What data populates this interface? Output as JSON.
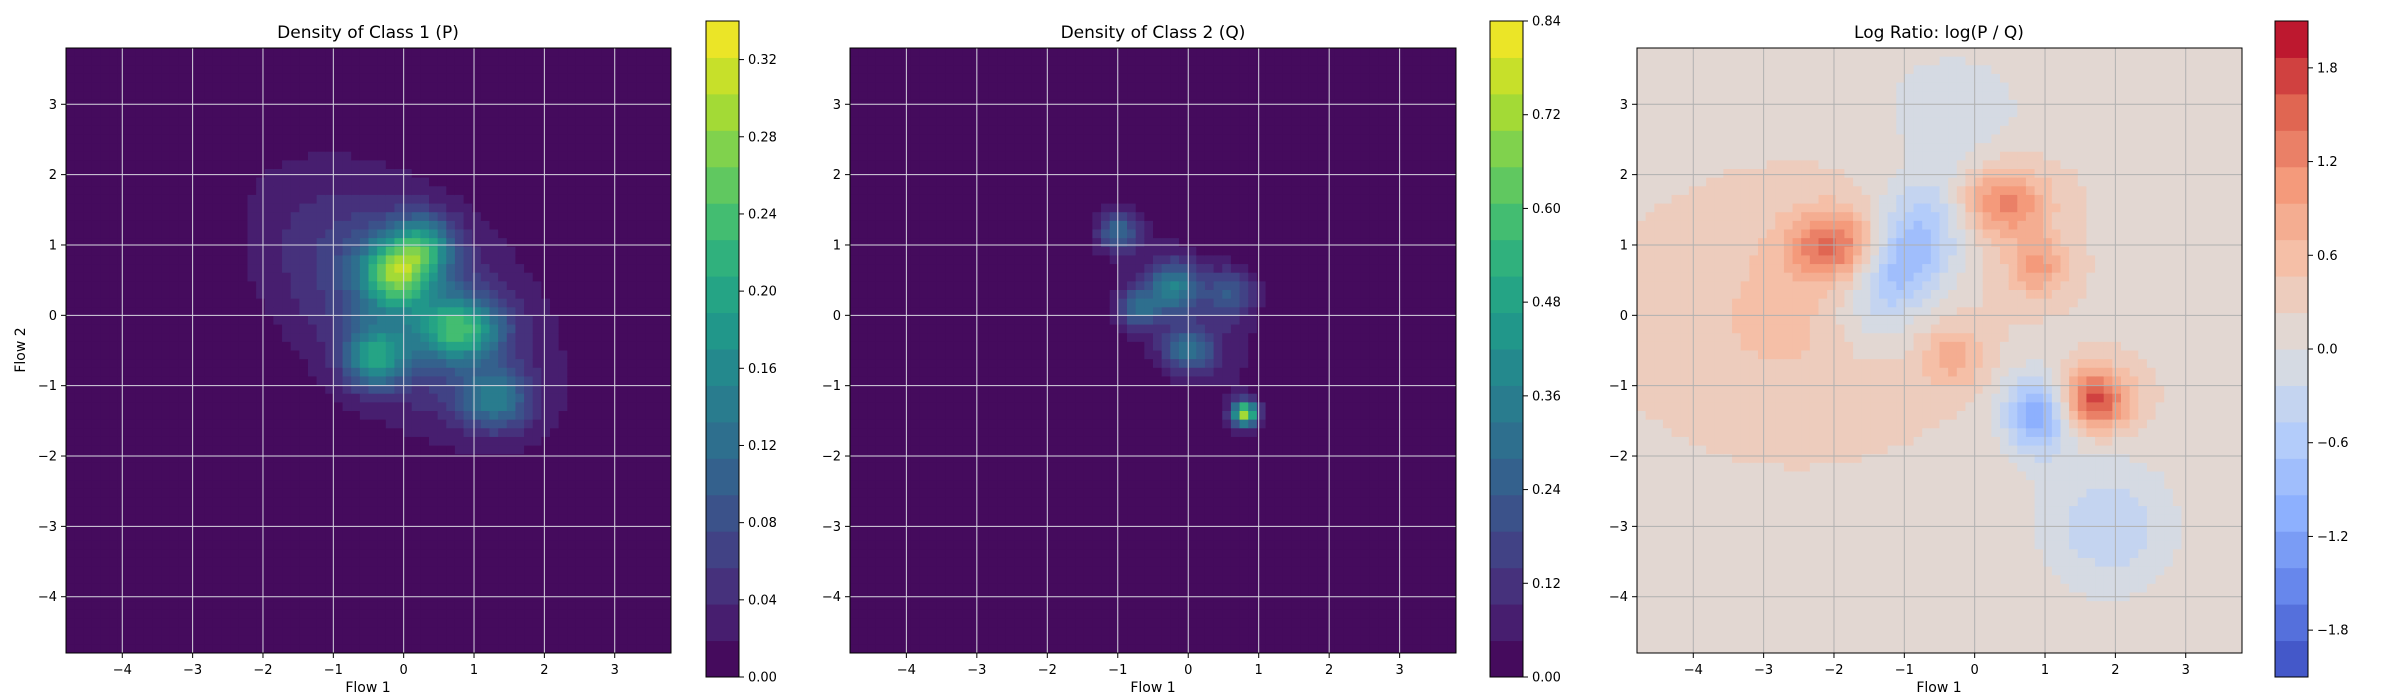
{
  "chart_data": [
    {
      "type": "heatmap",
      "title": "Density of Class 1 (P)",
      "xlabel": "Flow 1",
      "ylabel": "Flow 2",
      "xlim": [
        -4.8,
        3.8
      ],
      "ylim": [
        -4.8,
        3.8
      ],
      "xticks": [
        -4,
        -3,
        -2,
        -1,
        0,
        1,
        2,
        3
      ],
      "yticks": [
        -4,
        -3,
        -2,
        -1,
        0,
        1,
        2,
        3
      ],
      "xtick_labels": [
        "−4",
        "−3",
        "−2",
        "−1",
        "0",
        "1",
        "2",
        "3"
      ],
      "ytick_labels": [
        "−4",
        "−3",
        "−2",
        "−1",
        "0",
        "1",
        "2",
        "3"
      ],
      "grid": true,
      "colormap": "viridis",
      "colorbar_range": [
        0.0,
        0.34
      ],
      "colorbar_ticks": [
        0.0,
        0.04,
        0.08,
        0.12,
        0.16,
        0.2,
        0.24,
        0.28,
        0.32
      ],
      "colorbar_tick_labels": [
        "0.00",
        "0.04",
        "0.08",
        "0.12",
        "0.16",
        "0.20",
        "0.24",
        "0.28",
        "0.32"
      ],
      "density_blobs": [
        {
          "x": 0.0,
          "y": 0.2,
          "sx": 1.5,
          "sy": 0.9,
          "rot": -40,
          "peak": 0.09
        },
        {
          "x": -0.1,
          "y": 0.6,
          "sx": 0.35,
          "sy": 0.35,
          "rot": 0,
          "peak": 0.2
        },
        {
          "x": 0.8,
          "y": -0.2,
          "sx": 0.4,
          "sy": 0.3,
          "rot": 0,
          "peak": 0.17
        },
        {
          "x": -0.4,
          "y": -0.6,
          "sx": 0.3,
          "sy": 0.3,
          "rot": 0,
          "peak": 0.15
        },
        {
          "x": 1.3,
          "y": -1.2,
          "sx": 0.35,
          "sy": 0.3,
          "rot": 0,
          "peak": 0.11
        },
        {
          "x": 0.3,
          "y": 1.0,
          "sx": 0.3,
          "sy": 0.3,
          "rot": 0,
          "peak": 0.12
        }
      ]
    },
    {
      "type": "heatmap",
      "title": "Density of Class 2 (Q)",
      "xlabel": "Flow 1",
      "ylabel": "",
      "xlim": [
        -4.8,
        3.8
      ],
      "ylim": [
        -4.8,
        3.8
      ],
      "xticks": [
        -4,
        -3,
        -2,
        -1,
        0,
        1,
        2,
        3
      ],
      "yticks": [
        -4,
        -3,
        -2,
        -1,
        0,
        1,
        2,
        3
      ],
      "xtick_labels": [
        "−4",
        "−3",
        "−2",
        "−1",
        "0",
        "1",
        "2",
        "3"
      ],
      "ytick_labels": [
        "−4",
        "−3",
        "−2",
        "−1",
        "0",
        "1",
        "2",
        "3"
      ],
      "grid": true,
      "colormap": "viridis",
      "colorbar_range": [
        0.0,
        0.84
      ],
      "colorbar_ticks": [
        0.0,
        0.12,
        0.24,
        0.36,
        0.48,
        0.6,
        0.72,
        0.84
      ],
      "colorbar_tick_labels": [
        "0.00",
        "0.12",
        "0.24",
        "0.36",
        "0.48",
        "0.60",
        "0.72",
        "0.84"
      ],
      "density_blobs": [
        {
          "x": 0.0,
          "y": 0.0,
          "sx": 1.1,
          "sy": 0.55,
          "rot": -55,
          "peak": 0.08
        },
        {
          "x": -1.0,
          "y": 1.2,
          "sx": 0.2,
          "sy": 0.2,
          "rot": 0,
          "peak": 0.25
        },
        {
          "x": -0.2,
          "y": 0.4,
          "sx": 0.25,
          "sy": 0.25,
          "rot": 0,
          "peak": 0.3
        },
        {
          "x": -0.7,
          "y": 0.1,
          "sx": 0.2,
          "sy": 0.2,
          "rot": 0,
          "peak": 0.25
        },
        {
          "x": 0.0,
          "y": -0.5,
          "sx": 0.25,
          "sy": 0.2,
          "rot": 0,
          "peak": 0.27
        },
        {
          "x": 0.8,
          "y": -1.4,
          "sx": 0.12,
          "sy": 0.12,
          "rot": 0,
          "peak": 0.7
        },
        {
          "x": 0.6,
          "y": 0.3,
          "sx": 0.25,
          "sy": 0.25,
          "rot": 0,
          "peak": 0.2
        }
      ]
    },
    {
      "type": "heatmap",
      "title": "Log Ratio: log(P / Q)",
      "xlabel": "Flow 1",
      "ylabel": "",
      "xlim": [
        -4.8,
        3.8
      ],
      "ylim": [
        -4.8,
        3.8
      ],
      "xticks": [
        -4,
        -3,
        -2,
        -1,
        0,
        1,
        2,
        3
      ],
      "yticks": [
        -4,
        -3,
        -2,
        -1,
        0,
        1,
        2,
        3
      ],
      "xtick_labels": [
        "−4",
        "−3",
        "−2",
        "−1",
        "0",
        "1",
        "2",
        "3"
      ],
      "ytick_labels": [
        "−4",
        "−3",
        "−2",
        "−1",
        "0",
        "1",
        "2",
        "3"
      ],
      "grid": true,
      "colormap": "coolwarm",
      "colorbar_range": [
        -2.1,
        2.1
      ],
      "colorbar_ticks": [
        -1.8,
        -1.2,
        -0.6,
        0.0,
        0.6,
        1.2,
        1.8
      ],
      "colorbar_tick_labels": [
        "−1.8",
        "−1.2",
        "−0.6",
        "0.0",
        "0.6",
        "1.2",
        "1.8"
      ],
      "ratio_blobs": [
        {
          "x": -2.0,
          "y": 1.0,
          "sx": 0.45,
          "sy": 0.35,
          "rot": 0,
          "peak": 1.2
        },
        {
          "x": 0.4,
          "y": 1.6,
          "sx": 0.45,
          "sy": 0.35,
          "rot": 0,
          "peak": 1.1
        },
        {
          "x": 1.7,
          "y": -1.2,
          "sx": 0.35,
          "sy": 0.3,
          "rot": 0,
          "peak": 1.6
        },
        {
          "x": 0.9,
          "y": 0.7,
          "sx": 0.3,
          "sy": 0.3,
          "rot": 0,
          "peak": 0.8
        },
        {
          "x": -0.3,
          "y": -0.6,
          "sx": 0.3,
          "sy": 0.3,
          "rot": 0,
          "peak": 0.6
        },
        {
          "x": -1.0,
          "y": 0.8,
          "sx": 0.45,
          "sy": 0.8,
          "rot": -30,
          "peak": -1.3
        },
        {
          "x": 0.9,
          "y": -1.4,
          "sx": 0.35,
          "sy": 0.4,
          "rot": 0,
          "peak": -1.3
        },
        {
          "x": 1.9,
          "y": -3.0,
          "sx": 0.7,
          "sy": 0.7,
          "rot": 0,
          "peak": -0.6
        },
        {
          "x": -0.3,
          "y": 3.0,
          "sx": 0.8,
          "sy": 0.6,
          "rot": 0,
          "peak": -0.35
        },
        {
          "x": -2.5,
          "y": 0.0,
          "sx": 1.3,
          "sy": 1.0,
          "rot": 0,
          "peak": 0.35
        }
      ],
      "background_value": 0.2
    }
  ]
}
